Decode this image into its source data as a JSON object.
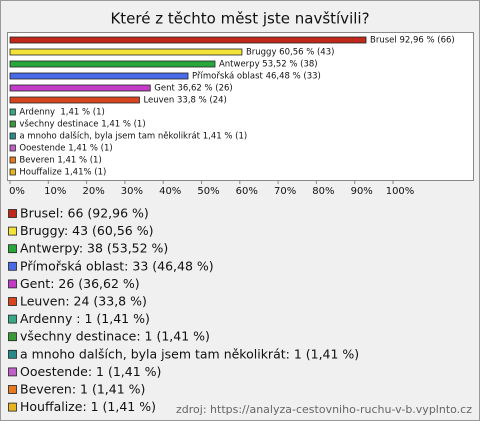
{
  "chart_data": {
    "type": "hbar",
    "title": "Které z těchto měst jste navštívili?",
    "categories": [
      "Brusel",
      "Bruggy",
      "Antwerpy",
      "Přímořská oblast",
      "Gent",
      "Leuven",
      "Ardenny",
      "všechny destinace",
      "a mnoho dalších, byla jsem tam několikrát",
      "Ooestende",
      "Beveren",
      "Houffalize"
    ],
    "values": [
      92.96,
      60.56,
      53.52,
      46.48,
      36.62,
      33.8,
      1.41,
      1.41,
      1.41,
      1.41,
      1.41,
      1.41
    ],
    "value_labels": [
      "Brusel 92,96 % (66)",
      "Bruggy 60,56 % (43)",
      "Antwerpy 53,52 % (38)",
      "Přímořská oblast 46,48 % (33)",
      "Gent 36,62 % (26)",
      "Leuven 33,8 % (24)",
      "Ardenny  1,41 % (1)",
      "všechny destinace 1,41 % (1)",
      "a mnoho dalších, byla jsem tam několikrát 1,41 % (1)",
      "Ooestende 1,41 % (1)",
      "Beveren 1,41 % (1)",
      "Houffalize 1,41% (1)"
    ],
    "colors": [
      "#c0281c",
      "#f2e23a",
      "#28a83a",
      "#4a6ae8",
      "#c23cc8",
      "#d8441e",
      "#3aa886",
      "#3a9a3a",
      "#2a8a8a",
      "#c060c8",
      "#e87a20",
      "#e8b420"
    ],
    "legend_labels": [
      "Brusel: 66 (92,96 %)",
      "Bruggy: 43 (60,56 %)",
      "Antwerpy: 38 (53,52 %)",
      "Přímořská oblast: 33 (46,48 %)",
      "Gent: 26 (36,62 %)",
      "Leuven: 24 (33,8 %)",
      "Ardenny : 1 (1,41 %)",
      "všechny destinace: 1 (1,41 %)",
      "a mnoho dalších, byla jsem tam několikrát: 1 (1,41 %)",
      "Ooestende: 1 (1,41 %)",
      "Beveren: 1 (1,41 %)",
      "Houffalize: 1 (1,41 %)"
    ],
    "xlim": [
      0,
      100
    ],
    "xticks": [
      {
        "value": 0,
        "label": "0%"
      },
      {
        "value": 10,
        "label": "10%"
      },
      {
        "value": 20,
        "label": "20%"
      },
      {
        "value": 30,
        "label": "30%"
      },
      {
        "value": 40,
        "label": "40%"
      },
      {
        "value": 50,
        "label": "50%"
      },
      {
        "value": 60,
        "label": "60%"
      },
      {
        "value": 70,
        "label": "70%"
      },
      {
        "value": 80,
        "label": "80%"
      },
      {
        "value": 90,
        "label": "90%"
      },
      {
        "value": 100,
        "label": "100%"
      }
    ],
    "source": "zdroj: https://analyza-cestovniho-ruchu-v-b.vyplnto.cz"
  }
}
